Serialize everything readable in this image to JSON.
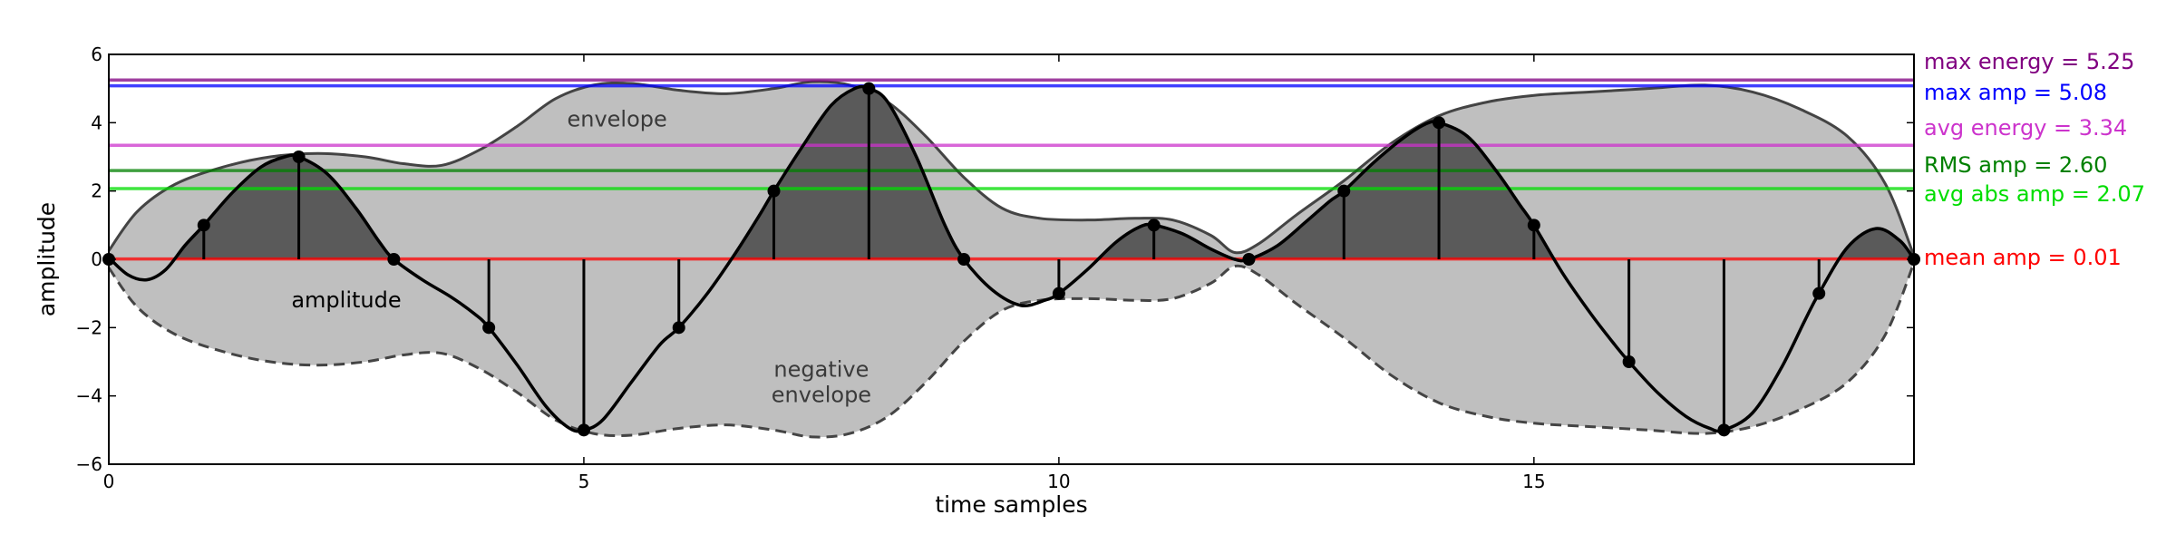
{
  "chart_data": {
    "type": "line",
    "xlabel": "time samples",
    "ylabel": "amplitude",
    "xlim": [
      0,
      19
    ],
    "ylim": [
      -6,
      6
    ],
    "x_ticks": [
      0,
      5,
      10,
      15
    ],
    "y_ticks": [
      -6,
      -4,
      -2,
      0,
      2,
      4,
      6
    ],
    "x_tick_labels": [
      "0",
      "5",
      "10",
      "15"
    ],
    "y_tick_labels": [
      "−6",
      "−4",
      "−2",
      "0",
      "2",
      "4",
      "6"
    ],
    "grid": false,
    "x": [
      0,
      1,
      2,
      3,
      4,
      5,
      6,
      7,
      8,
      9,
      10,
      11,
      12,
      13,
      14,
      15,
      16,
      17,
      18,
      19
    ],
    "samples": [
      0,
      1,
      3,
      0,
      -2,
      -5,
      -2,
      2,
      5,
      0,
      -1,
      1,
      0,
      2,
      4,
      1,
      -3,
      -5,
      -1,
      0
    ],
    "curve": [
      [
        0,
        0.05
      ],
      [
        0.2,
        -0.45
      ],
      [
        0.4,
        -0.6
      ],
      [
        0.6,
        -0.3
      ],
      [
        0.8,
        0.4
      ],
      [
        1,
        1
      ],
      [
        1.3,
        1.95
      ],
      [
        1.6,
        2.7
      ],
      [
        1.85,
        3.0
      ],
      [
        2,
        3
      ],
      [
        2.3,
        2.5
      ],
      [
        2.6,
        1.5
      ],
      [
        2.85,
        0.5
      ],
      [
        3,
        0
      ],
      [
        3.3,
        -0.6
      ],
      [
        3.6,
        -1.1
      ],
      [
        3.85,
        -1.6
      ],
      [
        4,
        -2
      ],
      [
        4.3,
        -3.1
      ],
      [
        4.6,
        -4.3
      ],
      [
        4.85,
        -4.95
      ],
      [
        5,
        -5
      ],
      [
        5.2,
        -4.7
      ],
      [
        5.5,
        -3.6
      ],
      [
        5.8,
        -2.5
      ],
      [
        6,
        -2
      ],
      [
        6.3,
        -1.0
      ],
      [
        6.6,
        0.2
      ],
      [
        6.85,
        1.3
      ],
      [
        7,
        2
      ],
      [
        7.3,
        3.3
      ],
      [
        7.6,
        4.5
      ],
      [
        7.85,
        5.0
      ],
      [
        8,
        5
      ],
      [
        8.2,
        4.6
      ],
      [
        8.5,
        3.0
      ],
      [
        8.8,
        1.0
      ],
      [
        9,
        0
      ],
      [
        9.3,
        -0.9
      ],
      [
        9.6,
        -1.35
      ],
      [
        9.85,
        -1.2
      ],
      [
        10,
        -1
      ],
      [
        10.3,
        -0.3
      ],
      [
        10.6,
        0.5
      ],
      [
        10.85,
        0.95
      ],
      [
        11,
        1
      ],
      [
        11.3,
        0.75
      ],
      [
        11.6,
        0.3
      ],
      [
        11.85,
        0.0
      ],
      [
        12,
        0
      ],
      [
        12.3,
        0.4
      ],
      [
        12.6,
        1.1
      ],
      [
        12.85,
        1.7
      ],
      [
        13,
        2
      ],
      [
        13.3,
        2.8
      ],
      [
        13.6,
        3.5
      ],
      [
        13.85,
        3.95
      ],
      [
        14,
        4
      ],
      [
        14.3,
        3.6
      ],
      [
        14.6,
        2.6
      ],
      [
        14.85,
        1.6
      ],
      [
        15,
        1
      ],
      [
        15.3,
        -0.4
      ],
      [
        15.6,
        -1.6
      ],
      [
        15.85,
        -2.5
      ],
      [
        16,
        -3
      ],
      [
        16.3,
        -3.9
      ],
      [
        16.6,
        -4.6
      ],
      [
        16.85,
        -4.95
      ],
      [
        17,
        -5
      ],
      [
        17.3,
        -4.5
      ],
      [
        17.6,
        -3.2
      ],
      [
        17.85,
        -1.8
      ],
      [
        18,
        -1
      ],
      [
        18.3,
        0.35
      ],
      [
        18.6,
        0.9
      ],
      [
        18.85,
        0.55
      ],
      [
        19,
        0
      ]
    ],
    "envelope": [
      [
        0,
        0.25
      ],
      [
        0.3,
        1.4
      ],
      [
        0.7,
        2.2
      ],
      [
        1.2,
        2.7
      ],
      [
        1.7,
        3.0
      ],
      [
        2.2,
        3.1
      ],
      [
        2.7,
        3.0
      ],
      [
        3.1,
        2.8
      ],
      [
        3.5,
        2.75
      ],
      [
        3.9,
        3.2
      ],
      [
        4.3,
        3.9
      ],
      [
        4.7,
        4.7
      ],
      [
        5.1,
        5.1
      ],
      [
        5.5,
        5.15
      ],
      [
        6,
        4.95
      ],
      [
        6.5,
        4.85
      ],
      [
        7,
        5.0
      ],
      [
        7.4,
        5.2
      ],
      [
        7.8,
        5.1
      ],
      [
        8.2,
        4.6
      ],
      [
        8.6,
        3.6
      ],
      [
        9,
        2.4
      ],
      [
        9.4,
        1.5
      ],
      [
        9.8,
        1.2
      ],
      [
        10.3,
        1.15
      ],
      [
        10.8,
        1.2
      ],
      [
        11.2,
        1.15
      ],
      [
        11.6,
        0.7
      ],
      [
        11.85,
        0.2
      ],
      [
        12.1,
        0.45
      ],
      [
        12.5,
        1.3
      ],
      [
        13,
        2.3
      ],
      [
        13.5,
        3.4
      ],
      [
        14,
        4.2
      ],
      [
        14.5,
        4.6
      ],
      [
        15,
        4.8
      ],
      [
        15.6,
        4.9
      ],
      [
        16.2,
        5.0
      ],
      [
        16.8,
        5.1
      ],
      [
        17.3,
        4.9
      ],
      [
        17.8,
        4.4
      ],
      [
        18.3,
        3.6
      ],
      [
        18.7,
        2.2
      ],
      [
        19,
        0.1
      ]
    ],
    "reference_lines": [
      {
        "label": "max energy = 5.25",
        "value": 5.25,
        "color": "#800080"
      },
      {
        "label": "max amp = 5.08",
        "value": 5.08,
        "color": "#0000ff"
      },
      {
        "label": "avg energy = 3.34",
        "value": 3.34,
        "color": "#cc33cc"
      },
      {
        "label": "RMS amp = 2.60",
        "value": 2.6,
        "color": "#008000"
      },
      {
        "label": "avg abs amp = 2.07",
        "value": 2.07,
        "color": "#00dd00"
      },
      {
        "label": "mean amp = 0.01",
        "value": 0.01,
        "color": "#ff0000"
      }
    ],
    "annotations": {
      "envelope": "envelope",
      "amplitude": "amplitude",
      "negative_envelope_line1": "negative",
      "negative_envelope_line2": "envelope"
    },
    "annotation_positions": {
      "envelope": [
        5.35,
        4.1
      ],
      "amplitude": [
        2.5,
        -1.2
      ],
      "negative_envelope": [
        7.5,
        -3.55
      ]
    },
    "colors": {
      "envelope_fill": "#bfbfbf",
      "area_fill": "#5a5a5a",
      "envelope_line": "#444444",
      "signal": "#000000"
    }
  }
}
